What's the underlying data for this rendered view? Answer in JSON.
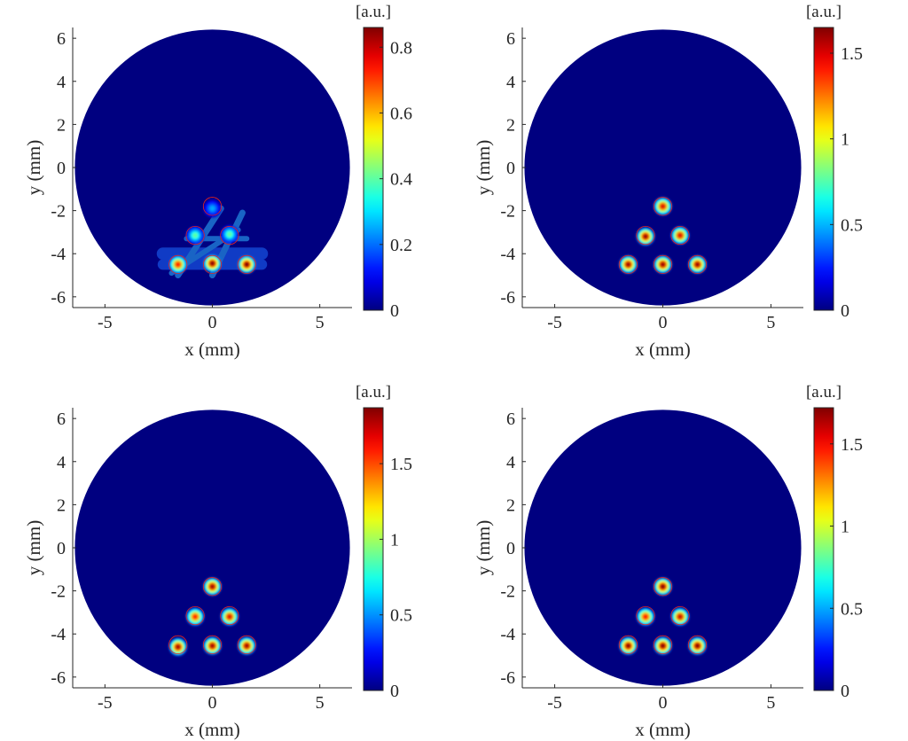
{
  "chart_data": [
    {
      "type": "heatmap",
      "xlabel": "x (mm)",
      "ylabel": "y (mm)",
      "colorbar_unit": "[a.u.]",
      "xlim": [
        -6.5,
        6.5
      ],
      "ylim": [
        -6.5,
        6.5
      ],
      "xticks": [
        "-5",
        "0",
        "5"
      ],
      "yticks": [
        "6",
        "4",
        "2",
        "0",
        "-2",
        "-4",
        "-6"
      ],
      "colorbar_range": [
        0,
        0.86
      ],
      "colorbar_ticks": [
        "0.8",
        "0.6",
        "0.4",
        "0.2",
        "0"
      ],
      "field_radius_mm": 6.4,
      "target_circles_mm": [
        {
          "x": 0,
          "y": -1.8
        },
        {
          "x": -0.8,
          "y": -3.15
        },
        {
          "x": 0.8,
          "y": -3.15
        },
        {
          "x": -1.6,
          "y": -4.5
        },
        {
          "x": 0,
          "y": -4.5
        },
        {
          "x": 1.6,
          "y": -4.5
        }
      ],
      "reconstructed_spots": [
        {
          "x": -1.6,
          "y": -4.5,
          "value": 0.75
        },
        {
          "x": 0,
          "y": -4.45,
          "value": 0.85
        },
        {
          "x": 1.6,
          "y": -4.5,
          "value": 0.86
        },
        {
          "x": -0.8,
          "y": -3.15,
          "value": 0.4
        },
        {
          "x": 0.8,
          "y": -3.1,
          "value": 0.4
        },
        {
          "x": 0,
          "y": -1.9,
          "value": 0.25
        }
      ],
      "artifacts": "streak artifacts between spots"
    },
    {
      "type": "heatmap",
      "xlabel": "x (mm)",
      "ylabel": "y (mm)",
      "colorbar_unit": "[a.u.]",
      "xlim": [
        -6.5,
        6.5
      ],
      "ylim": [
        -6.5,
        6.5
      ],
      "xticks": [
        "-5",
        "0",
        "5"
      ],
      "yticks": [
        "6",
        "4",
        "2",
        "0",
        "-2",
        "-4",
        "-6"
      ],
      "colorbar_range": [
        0,
        1.65
      ],
      "colorbar_ticks": [
        "1.5",
        "1",
        "0.5",
        "0"
      ],
      "field_radius_mm": 6.4,
      "target_circles_mm": [
        {
          "x": 0,
          "y": -1.8
        },
        {
          "x": -0.8,
          "y": -3.15
        },
        {
          "x": 0.8,
          "y": -3.15
        },
        {
          "x": -1.6,
          "y": -4.5
        },
        {
          "x": 0,
          "y": -4.5
        },
        {
          "x": 1.6,
          "y": -4.5
        }
      ],
      "reconstructed_spots": [
        {
          "x": 0,
          "y": -1.8,
          "value": 1.5
        },
        {
          "x": -0.8,
          "y": -3.2,
          "value": 1.6
        },
        {
          "x": 0.8,
          "y": -3.15,
          "value": 1.5
        },
        {
          "x": -1.6,
          "y": -4.5,
          "value": 1.6
        },
        {
          "x": 0,
          "y": -4.5,
          "value": 1.6
        },
        {
          "x": 1.6,
          "y": -4.5,
          "value": 1.6
        }
      ]
    },
    {
      "type": "heatmap",
      "xlabel": "x (mm)",
      "ylabel": "y (mm)",
      "colorbar_unit": "[a.u.]",
      "xlim": [
        -6.5,
        6.5
      ],
      "ylim": [
        -6.5,
        6.5
      ],
      "xticks": [
        "-5",
        "0",
        "5"
      ],
      "yticks": [
        "6",
        "4",
        "2",
        "0",
        "-2",
        "-4",
        "-6"
      ],
      "colorbar_range": [
        0,
        1.87
      ],
      "colorbar_ticks": [
        "1.5",
        "1",
        "0.5",
        "0"
      ],
      "field_radius_mm": 6.4,
      "target_circles_mm": [
        {
          "x": 0,
          "y": -1.8
        },
        {
          "x": -0.8,
          "y": -3.15
        },
        {
          "x": 0.8,
          "y": -3.15
        },
        {
          "x": -1.6,
          "y": -4.5
        },
        {
          "x": 0,
          "y": -4.5
        },
        {
          "x": 1.6,
          "y": -4.5
        }
      ],
      "reconstructed_spots": [
        {
          "x": 0,
          "y": -1.8,
          "value": 1.8
        },
        {
          "x": -0.8,
          "y": -3.2,
          "value": 1.6
        },
        {
          "x": 0.8,
          "y": -3.2,
          "value": 1.7
        },
        {
          "x": -1.6,
          "y": -4.6,
          "value": 1.8
        },
        {
          "x": 0,
          "y": -4.55,
          "value": 1.8
        },
        {
          "x": 1.6,
          "y": -4.55,
          "value": 1.8
        }
      ]
    },
    {
      "type": "heatmap",
      "xlabel": "x (mm)",
      "ylabel": "y (mm)",
      "colorbar_unit": "[a.u.]",
      "xlim": [
        -6.5,
        6.5
      ],
      "ylim": [
        -6.5,
        6.5
      ],
      "xticks": [
        "-5",
        "0",
        "5"
      ],
      "yticks": [
        "6",
        "4",
        "2",
        "0",
        "-2",
        "-4",
        "-6"
      ],
      "colorbar_range": [
        0,
        1.72
      ],
      "colorbar_ticks": [
        "1.5",
        "1",
        "0.5",
        "0"
      ],
      "field_radius_mm": 6.4,
      "target_circles_mm": [
        {
          "x": 0,
          "y": -1.8
        },
        {
          "x": -0.8,
          "y": -3.15
        },
        {
          "x": 0.8,
          "y": -3.15
        },
        {
          "x": -1.6,
          "y": -4.5
        },
        {
          "x": 0,
          "y": -4.5
        },
        {
          "x": 1.6,
          "y": -4.5
        }
      ],
      "reconstructed_spots": [
        {
          "x": 0,
          "y": -1.8,
          "value": 1.7
        },
        {
          "x": -0.8,
          "y": -3.2,
          "value": 1.5
        },
        {
          "x": 0.8,
          "y": -3.2,
          "value": 1.6
        },
        {
          "x": -1.6,
          "y": -4.55,
          "value": 1.7
        },
        {
          "x": 0,
          "y": -4.55,
          "value": 1.7
        },
        {
          "x": 1.6,
          "y": -4.55,
          "value": 1.7
        }
      ]
    }
  ]
}
